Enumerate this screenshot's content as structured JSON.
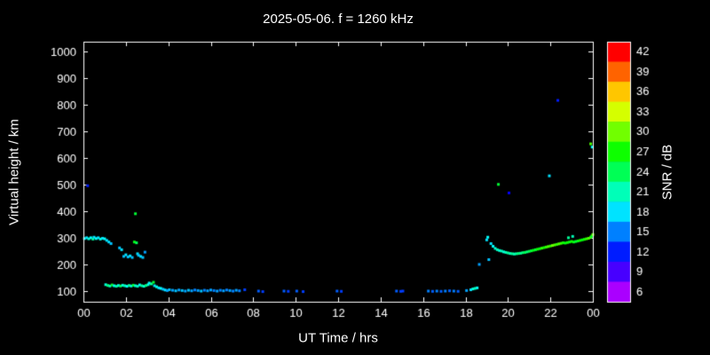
{
  "title": "2025-05-06. f = 1260 kHz",
  "colors": {
    "background": "#000000",
    "foreground": "#ffffff"
  },
  "chart_data": {
    "type": "scatter",
    "title": "2025-05-06. f = 1260 kHz",
    "xlabel": "UT Time / hrs",
    "ylabel": "Virtual height / km",
    "xlim": [
      0,
      24
    ],
    "ylim": [
      60,
      1035
    ],
    "grid": false,
    "marker": "square-3px",
    "x_ticks": {
      "values": [
        0,
        2,
        4,
        6,
        8,
        10,
        12,
        14,
        16,
        18,
        20,
        22,
        24
      ],
      "labels": [
        "00",
        "02",
        "04",
        "06",
        "08",
        "10",
        "12",
        "14",
        "16",
        "18",
        "20",
        "22",
        "00"
      ]
    },
    "y_ticks": {
      "values": [
        100,
        200,
        300,
        400,
        500,
        600,
        700,
        800,
        900,
        1000
      ],
      "labels": [
        "100",
        "200",
        "300",
        "400",
        "500",
        "600",
        "700",
        "800",
        "900",
        "1000"
      ]
    },
    "colorbar": {
      "label": "SNR / dB",
      "range": [
        6,
        42
      ],
      "ticks": [
        42,
        39,
        36,
        33,
        30,
        27,
        24,
        21,
        18,
        15,
        12,
        9,
        6
      ],
      "position": "right"
    },
    "points_format": [
      "ut_hours",
      "virtual_height_km",
      "snr_db"
    ],
    "points": [
      [
        0.05,
        297,
        19
      ],
      [
        0.15,
        300,
        18
      ],
      [
        0.2,
        495,
        12
      ],
      [
        0.25,
        296,
        20
      ],
      [
        0.35,
        300,
        19
      ],
      [
        0.45,
        295,
        22
      ],
      [
        0.5,
        302,
        18
      ],
      [
        0.6,
        297,
        19
      ],
      [
        0.7,
        300,
        18
      ],
      [
        0.8,
        295,
        20
      ],
      [
        0.9,
        298,
        18
      ],
      [
        1.0,
        296,
        19
      ],
      [
        1.1,
        290,
        18
      ],
      [
        1.2,
        284,
        18
      ],
      [
        1.3,
        278,
        17
      ],
      [
        1.7,
        262,
        17
      ],
      [
        1.8,
        255,
        18
      ],
      [
        1.9,
        230,
        17
      ],
      [
        2.0,
        236,
        18
      ],
      [
        2.1,
        228,
        17
      ],
      [
        2.2,
        232,
        18
      ],
      [
        2.3,
        226,
        17
      ],
      [
        2.4,
        284,
        26
      ],
      [
        2.45,
        390,
        25
      ],
      [
        2.5,
        281,
        24
      ],
      [
        2.55,
        240,
        18
      ],
      [
        2.6,
        234,
        17
      ],
      [
        2.7,
        230,
        18
      ],
      [
        2.8,
        226,
        17
      ],
      [
        2.9,
        246,
        16
      ],
      [
        1.05,
        124,
        20
      ],
      [
        1.15,
        121,
        23
      ],
      [
        1.25,
        119,
        21
      ],
      [
        1.35,
        123,
        25
      ],
      [
        1.45,
        120,
        19
      ],
      [
        1.55,
        118,
        22
      ],
      [
        1.65,
        121,
        20
      ],
      [
        1.75,
        119,
        24
      ],
      [
        1.85,
        122,
        20
      ],
      [
        1.95,
        120,
        21
      ],
      [
        2.05,
        118,
        19
      ],
      [
        2.15,
        121,
        22
      ],
      [
        2.25,
        119,
        20
      ],
      [
        2.35,
        122,
        25
      ],
      [
        2.45,
        120,
        20
      ],
      [
        2.55,
        118,
        21
      ],
      [
        2.65,
        123,
        19
      ],
      [
        2.75,
        120,
        22
      ],
      [
        2.85,
        118,
        20
      ],
      [
        2.95,
        121,
        23
      ],
      [
        3.05,
        124,
        20
      ],
      [
        3.1,
        130,
        19
      ],
      [
        3.2,
        127,
        22
      ],
      [
        3.3,
        133,
        25
      ],
      [
        3.35,
        120,
        18
      ],
      [
        3.45,
        116,
        20
      ],
      [
        3.55,
        112,
        18
      ],
      [
        3.65,
        110,
        19
      ],
      [
        3.75,
        107,
        17
      ],
      [
        3.85,
        104,
        18
      ],
      [
        3.95,
        102,
        16
      ],
      [
        4.05,
        105,
        17
      ],
      [
        4.2,
        103,
        16
      ],
      [
        4.35,
        101,
        17
      ],
      [
        4.5,
        104,
        16
      ],
      [
        4.65,
        102,
        17
      ],
      [
        4.8,
        100,
        16
      ],
      [
        4.95,
        103,
        17
      ],
      [
        5.1,
        101,
        16
      ],
      [
        5.25,
        104,
        15
      ],
      [
        5.4,
        102,
        16
      ],
      [
        5.55,
        100,
        17
      ],
      [
        5.7,
        103,
        15
      ],
      [
        5.85,
        101,
        16
      ],
      [
        6.0,
        104,
        16
      ],
      [
        6.15,
        102,
        15
      ],
      [
        6.3,
        100,
        16
      ],
      [
        6.45,
        103,
        15
      ],
      [
        6.6,
        101,
        16
      ],
      [
        6.75,
        104,
        15
      ],
      [
        6.9,
        102,
        16
      ],
      [
        7.05,
        100,
        15
      ],
      [
        7.2,
        103,
        16
      ],
      [
        7.35,
        101,
        15
      ],
      [
        7.6,
        105,
        13
      ],
      [
        8.25,
        100,
        14
      ],
      [
        8.45,
        98,
        13
      ],
      [
        9.45,
        100,
        14
      ],
      [
        9.65,
        99,
        13
      ],
      [
        10.05,
        100,
        14
      ],
      [
        10.35,
        98,
        13
      ],
      [
        11.95,
        100,
        14
      ],
      [
        12.15,
        99,
        13
      ],
      [
        14.75,
        100,
        14
      ],
      [
        14.95,
        99,
        13
      ],
      [
        15.05,
        100,
        13
      ],
      [
        16.25,
        100,
        15
      ],
      [
        16.45,
        99,
        14
      ],
      [
        16.65,
        100,
        15
      ],
      [
        16.85,
        99,
        14
      ],
      [
        17.05,
        100,
        15
      ],
      [
        17.25,
        101,
        14
      ],
      [
        17.45,
        100,
        15
      ],
      [
        17.65,
        99,
        14
      ],
      [
        18.05,
        102,
        16
      ],
      [
        18.25,
        105,
        18
      ],
      [
        18.35,
        108,
        20
      ],
      [
        18.45,
        110,
        21
      ],
      [
        18.55,
        112,
        19
      ],
      [
        18.65,
        200,
        16
      ],
      [
        19.0,
        292,
        18
      ],
      [
        19.05,
        302,
        19
      ],
      [
        19.1,
        218,
        17
      ],
      [
        19.2,
        278,
        18
      ],
      [
        19.3,
        268,
        19
      ],
      [
        19.4,
        260,
        20
      ],
      [
        19.5,
        255,
        21
      ],
      [
        19.6,
        252,
        20
      ],
      [
        19.7,
        250,
        21
      ],
      [
        19.8,
        247,
        20
      ],
      [
        19.9,
        245,
        21
      ],
      [
        20.0,
        243,
        22
      ],
      [
        20.1,
        241,
        21
      ],
      [
        20.2,
        240,
        22
      ],
      [
        20.3,
        239,
        21
      ],
      [
        20.4,
        240,
        22
      ],
      [
        20.5,
        241,
        23
      ],
      [
        20.6,
        242,
        22
      ],
      [
        20.7,
        244,
        23
      ],
      [
        20.8,
        245,
        24
      ],
      [
        20.9,
        247,
        23
      ],
      [
        21.0,
        249,
        24
      ],
      [
        21.1,
        251,
        25
      ],
      [
        21.2,
        253,
        26
      ],
      [
        21.3,
        255,
        25
      ],
      [
        21.4,
        257,
        27
      ],
      [
        21.5,
        259,
        26
      ],
      [
        21.6,
        261,
        28
      ],
      [
        21.7,
        263,
        27
      ],
      [
        21.8,
        265,
        28
      ],
      [
        21.9,
        267,
        29
      ],
      [
        22.0,
        269,
        28
      ],
      [
        22.1,
        271,
        30
      ],
      [
        22.2,
        273,
        29
      ],
      [
        22.3,
        275,
        28
      ],
      [
        22.4,
        277,
        29
      ],
      [
        22.5,
        279,
        28
      ],
      [
        22.6,
        281,
        27
      ],
      [
        22.7,
        280,
        26
      ],
      [
        22.8,
        282,
        27
      ],
      [
        22.9,
        284,
        26
      ],
      [
        23.0,
        286,
        27
      ],
      [
        23.1,
        284,
        26
      ],
      [
        23.2,
        286,
        25
      ],
      [
        23.3,
        288,
        26
      ],
      [
        23.4,
        290,
        27
      ],
      [
        23.5,
        292,
        26
      ],
      [
        23.6,
        294,
        27
      ],
      [
        23.7,
        296,
        28
      ],
      [
        23.8,
        298,
        29
      ],
      [
        23.9,
        302,
        28
      ],
      [
        23.95,
        306,
        25
      ],
      [
        24.0,
        312,
        30
      ],
      [
        22.85,
        300,
        22
      ],
      [
        23.05,
        305,
        21
      ],
      [
        19.55,
        500,
        25
      ],
      [
        20.05,
        468,
        11
      ],
      [
        21.95,
        532,
        18
      ],
      [
        22.35,
        815,
        12
      ],
      [
        23.9,
        652,
        29
      ],
      [
        23.97,
        640,
        19
      ]
    ]
  }
}
